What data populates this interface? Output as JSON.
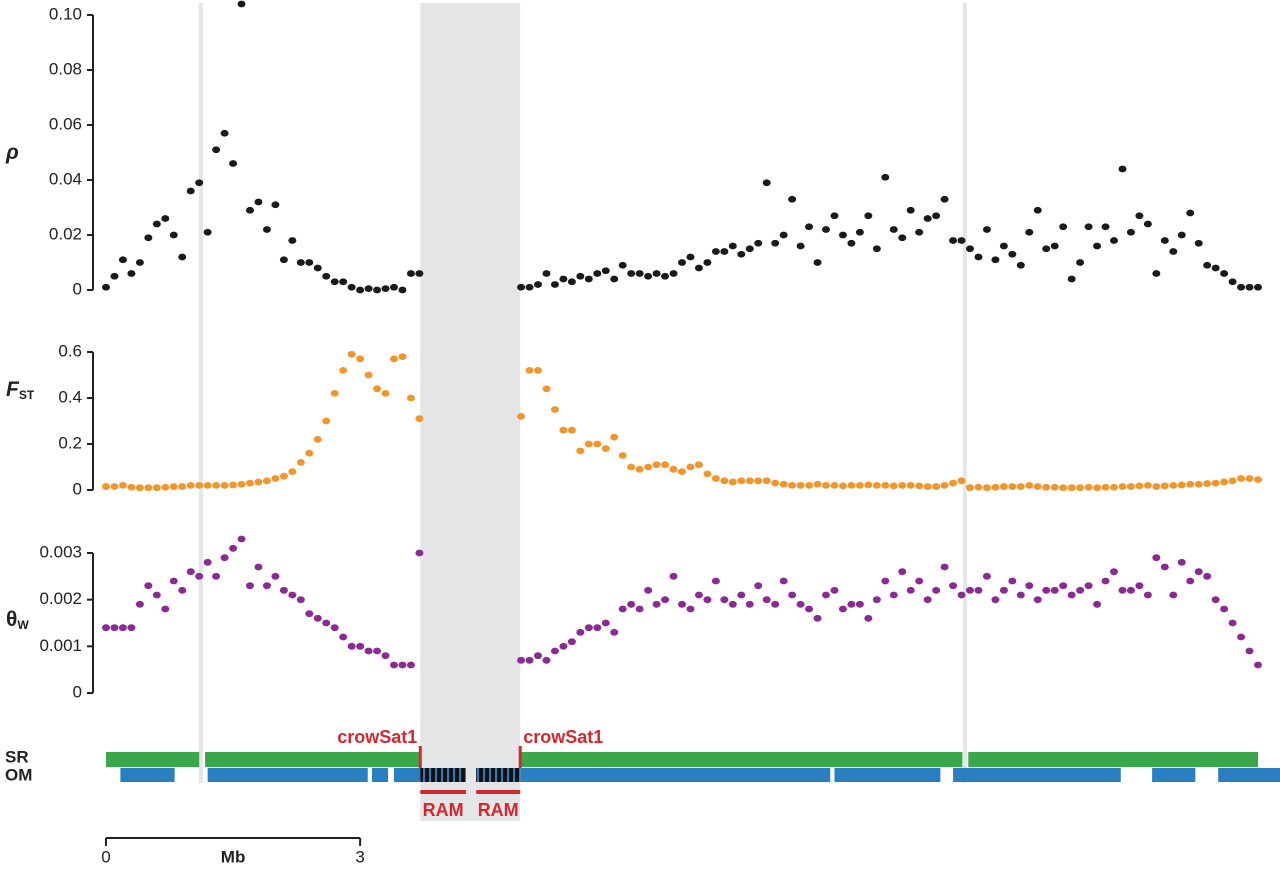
{
  "chart_data": [
    {
      "type": "scatter",
      "ylabel": "ρ",
      "color": "#1a1a1a",
      "xlim": [
        0,
        13.6
      ],
      "ylim": [
        0,
        0.1
      ],
      "yticks": [
        0,
        0.02,
        0.04,
        0.06,
        0.08,
        {
          "value": 0.1,
          "label": "0.10"
        }
      ],
      "x": [
        0,
        0.1,
        0.2,
        0.3,
        0.4,
        0.5,
        0.6,
        0.7,
        0.8,
        0.9,
        1.0,
        1.1,
        1.2,
        1.3,
        1.4,
        1.5,
        1.6,
        1.7,
        1.8,
        1.9,
        2.0,
        2.1,
        2.2,
        2.3,
        2.4,
        2.5,
        2.6,
        2.7,
        2.8,
        2.9,
        3.0,
        3.1,
        3.2,
        3.3,
        3.4,
        3.5,
        3.6,
        3.7,
        4.9,
        5.0,
        5.1,
        5.2,
        5.3,
        5.4,
        5.5,
        5.6,
        5.7,
        5.8,
        5.9,
        6.0,
        6.1,
        6.2,
        6.3,
        6.4,
        6.5,
        6.6,
        6.7,
        6.8,
        6.9,
        7.0,
        7.1,
        7.2,
        7.3,
        7.4,
        7.5,
        7.6,
        7.7,
        7.8,
        7.9,
        8.0,
        8.1,
        8.2,
        8.3,
        8.4,
        8.5,
        8.6,
        8.7,
        8.8,
        8.9,
        9.0,
        9.1,
        9.2,
        9.3,
        9.4,
        9.5,
        9.6,
        9.7,
        9.8,
        9.9,
        10.0,
        10.1,
        10.2,
        10.3,
        10.4,
        10.5,
        10.6,
        10.7,
        10.8,
        10.9,
        11.0,
        11.1,
        11.2,
        11.3,
        11.4,
        11.5,
        11.6,
        11.7,
        11.8,
        11.9,
        12.0,
        12.1,
        12.2,
        12.3,
        12.4,
        12.5,
        12.6,
        12.7,
        12.8,
        12.9,
        13.0,
        13.1,
        13.2,
        13.3,
        13.4,
        13.5,
        13.6
      ],
      "values": [
        0.001,
        0.005,
        0.011,
        0.006,
        0.01,
        0.019,
        0.024,
        0.026,
        0.02,
        0.012,
        0.036,
        0.039,
        0.021,
        0.051,
        0.057,
        0.046,
        0.104,
        0.029,
        0.032,
        0.022,
        0.031,
        0.011,
        0.018,
        0.01,
        0.01,
        0.008,
        0.005,
        0.003,
        0.003,
        0.001,
        0.0,
        0.0005,
        0.0,
        0.0005,
        0.001,
        0.0,
        0.006,
        0.006,
        0.001,
        0.001,
        0.002,
        0.006,
        0.002,
        0.004,
        0.003,
        0.005,
        0.004,
        0.006,
        0.007,
        0.004,
        0.009,
        0.006,
        0.006,
        0.005,
        0.006,
        0.005,
        0.006,
        0.01,
        0.012,
        0.008,
        0.01,
        0.014,
        0.014,
        0.016,
        0.013,
        0.015,
        0.017,
        0.039,
        0.017,
        0.02,
        0.033,
        0.016,
        0.023,
        0.01,
        0.022,
        0.027,
        0.02,
        0.017,
        0.021,
        0.027,
        0.015,
        0.041,
        0.022,
        0.019,
        0.029,
        0.021,
        0.026,
        0.027,
        0.033,
        0.018,
        0.018,
        0.015,
        0.012,
        0.022,
        0.011,
        0.016,
        0.013,
        0.009,
        0.021,
        0.029,
        0.015,
        0.016,
        0.023,
        0.004,
        0.01,
        0.023,
        0.016,
        0.023,
        0.018,
        0.044,
        0.021,
        0.027,
        0.024,
        0.006,
        0.018,
        0.014,
        0.02,
        0.028,
        0.017,
        0.009,
        0.008,
        0.006,
        0.003,
        0.001,
        0.001,
        0.001
      ]
    },
    {
      "type": "scatter",
      "ylabel": "F",
      "ylabel_sub": "ST",
      "color": "#f0962a",
      "xlim": [
        0,
        13.6
      ],
      "ylim": [
        0,
        0.6
      ],
      "yticks": [
        0,
        0.2,
        0.4,
        0.6
      ],
      "x": [
        0,
        0.1,
        0.2,
        0.3,
        0.4,
        0.5,
        0.6,
        0.7,
        0.8,
        0.9,
        1.0,
        1.1,
        1.2,
        1.3,
        1.4,
        1.5,
        1.6,
        1.7,
        1.8,
        1.9,
        2.0,
        2.1,
        2.2,
        2.3,
        2.4,
        2.5,
        2.6,
        2.7,
        2.8,
        2.9,
        3.0,
        3.1,
        3.2,
        3.3,
        3.4,
        3.5,
        3.6,
        3.7,
        4.9,
        5.0,
        5.1,
        5.2,
        5.3,
        5.4,
        5.5,
        5.6,
        5.7,
        5.8,
        5.9,
        6.0,
        6.1,
        6.2,
        6.3,
        6.4,
        6.5,
        6.6,
        6.7,
        6.8,
        6.9,
        7.0,
        7.1,
        7.2,
        7.3,
        7.4,
        7.5,
        7.6,
        7.7,
        7.8,
        7.9,
        8.0,
        8.1,
        8.2,
        8.3,
        8.4,
        8.5,
        8.6,
        8.7,
        8.8,
        8.9,
        9.0,
        9.1,
        9.2,
        9.3,
        9.4,
        9.5,
        9.6,
        9.7,
        9.8,
        9.9,
        10.0,
        10.1,
        10.2,
        10.3,
        10.4,
        10.5,
        10.6,
        10.7,
        10.8,
        10.9,
        11.0,
        11.1,
        11.2,
        11.3,
        11.4,
        11.5,
        11.6,
        11.7,
        11.8,
        11.9,
        12.0,
        12.1,
        12.2,
        12.3,
        12.4,
        12.5,
        12.6,
        12.7,
        12.8,
        12.9,
        13.0,
        13.1,
        13.2,
        13.3,
        13.4,
        13.5,
        13.6
      ],
      "values": [
        0.015,
        0.015,
        0.02,
        0.012,
        0.01,
        0.01,
        0.01,
        0.012,
        0.015,
        0.015,
        0.02,
        0.02,
        0.02,
        0.02,
        0.02,
        0.022,
        0.025,
        0.03,
        0.035,
        0.04,
        0.05,
        0.06,
        0.08,
        0.12,
        0.16,
        0.22,
        0.3,
        0.42,
        0.52,
        0.59,
        0.57,
        0.5,
        0.44,
        0.42,
        0.57,
        0.58,
        0.4,
        0.31,
        0.32,
        0.52,
        0.52,
        0.44,
        0.35,
        0.26,
        0.26,
        0.17,
        0.2,
        0.2,
        0.18,
        0.23,
        0.15,
        0.1,
        0.09,
        0.1,
        0.11,
        0.11,
        0.09,
        0.08,
        0.1,
        0.11,
        0.07,
        0.05,
        0.04,
        0.035,
        0.04,
        0.04,
        0.04,
        0.04,
        0.03,
        0.025,
        0.02,
        0.02,
        0.02,
        0.025,
        0.02,
        0.02,
        0.018,
        0.02,
        0.02,
        0.022,
        0.02,
        0.02,
        0.018,
        0.02,
        0.02,
        0.018,
        0.015,
        0.015,
        0.02,
        0.03,
        0.04,
        0.01,
        0.012,
        0.01,
        0.012,
        0.015,
        0.015,
        0.015,
        0.02,
        0.015,
        0.012,
        0.012,
        0.01,
        0.01,
        0.01,
        0.012,
        0.01,
        0.012,
        0.012,
        0.015,
        0.015,
        0.018,
        0.02,
        0.015,
        0.018,
        0.02,
        0.022,
        0.025,
        0.025,
        0.028,
        0.03,
        0.035,
        0.04,
        0.05,
        0.05,
        0.045
      ]
    },
    {
      "type": "scatter",
      "ylabel": "θ",
      "ylabel_sub": "W",
      "color": "#8b2a94",
      "xlim": [
        0,
        13.6
      ],
      "ylim": [
        0,
        0.003
      ],
      "yticks": [
        0,
        0.001,
        0.002,
        0.003
      ],
      "x": [
        0,
        0.1,
        0.2,
        0.3,
        0.4,
        0.5,
        0.6,
        0.7,
        0.8,
        0.9,
        1.0,
        1.1,
        1.2,
        1.3,
        1.4,
        1.5,
        1.6,
        1.7,
        1.8,
        1.9,
        2.0,
        2.1,
        2.2,
        2.3,
        2.4,
        2.5,
        2.6,
        2.7,
        2.8,
        2.9,
        3.0,
        3.1,
        3.2,
        3.3,
        3.4,
        3.5,
        3.6,
        3.7,
        4.9,
        5.0,
        5.1,
        5.2,
        5.3,
        5.4,
        5.5,
        5.6,
        5.7,
        5.8,
        5.9,
        6.0,
        6.1,
        6.2,
        6.3,
        6.4,
        6.5,
        6.6,
        6.7,
        6.8,
        6.9,
        7.0,
        7.1,
        7.2,
        7.3,
        7.4,
        7.5,
        7.6,
        7.7,
        7.8,
        7.9,
        8.0,
        8.1,
        8.2,
        8.3,
        8.4,
        8.5,
        8.6,
        8.7,
        8.8,
        8.9,
        9.0,
        9.1,
        9.2,
        9.3,
        9.4,
        9.5,
        9.6,
        9.7,
        9.8,
        9.9,
        10.0,
        10.1,
        10.2,
        10.3,
        10.4,
        10.5,
        10.6,
        10.7,
        10.8,
        10.9,
        11.0,
        11.1,
        11.2,
        11.3,
        11.4,
        11.5,
        11.6,
        11.7,
        11.8,
        11.9,
        12.0,
        12.1,
        12.2,
        12.3,
        12.4,
        12.5,
        12.6,
        12.7,
        12.8,
        12.9,
        13.0,
        13.1,
        13.2,
        13.3,
        13.4,
        13.5,
        13.6
      ],
      "values": [
        0.0014,
        0.0014,
        0.0014,
        0.0014,
        0.0019,
        0.0023,
        0.0021,
        0.0018,
        0.0024,
        0.0022,
        0.0026,
        0.0025,
        0.0028,
        0.0025,
        0.0029,
        0.0031,
        0.0033,
        0.0023,
        0.0027,
        0.0023,
        0.0025,
        0.0022,
        0.0021,
        0.002,
        0.0017,
        0.0016,
        0.0015,
        0.0014,
        0.0012,
        0.001,
        0.001,
        0.0009,
        0.0009,
        0.0008,
        0.0006,
        0.0006,
        0.0006,
        0.003,
        0.0007,
        0.0007,
        0.0008,
        0.0007,
        0.0009,
        0.001,
        0.0011,
        0.0013,
        0.0014,
        0.0014,
        0.0015,
        0.0013,
        0.0018,
        0.0019,
        0.0018,
        0.0022,
        0.0019,
        0.002,
        0.0025,
        0.0019,
        0.0018,
        0.0021,
        0.002,
        0.0024,
        0.002,
        0.0019,
        0.0021,
        0.0019,
        0.0023,
        0.002,
        0.0019,
        0.0024,
        0.0021,
        0.0019,
        0.0018,
        0.0016,
        0.0021,
        0.0022,
        0.0018,
        0.0019,
        0.0019,
        0.0016,
        0.002,
        0.0024,
        0.0021,
        0.0026,
        0.0022,
        0.0024,
        0.002,
        0.0022,
        0.0027,
        0.0023,
        0.0021,
        0.0022,
        0.0022,
        0.0025,
        0.002,
        0.0022,
        0.0024,
        0.0021,
        0.0023,
        0.002,
        0.0022,
        0.0022,
        0.0023,
        0.0021,
        0.0022,
        0.0023,
        0.0019,
        0.0024,
        0.0026,
        0.0022,
        0.0022,
        0.0023,
        0.0021,
        0.0029,
        0.0027,
        0.0021,
        0.0028,
        0.0024,
        0.0026,
        0.0025,
        0.002,
        0.0018,
        0.0015,
        0.0012,
        0.0009,
        0.0006
      ]
    }
  ],
  "regions": {
    "gap": [
      3.71,
      4.89
    ],
    "markers": [
      1.12,
      10.14
    ]
  },
  "tracks": [
    {
      "label": "SR",
      "color": "#3aa84a",
      "segments": [
        [
          0,
          1.1
        ],
        [
          1.17,
          10.11
        ],
        [
          10.18,
          13.6
        ]
      ]
    },
    {
      "label": "OM",
      "color": "#2a7fc1",
      "segments": [
        [
          0.17,
          0.81
        ],
        [
          1.2,
          3.09
        ],
        [
          3.14,
          3.33
        ],
        [
          3.4,
          3.71
        ],
        [
          4.89,
          8.55
        ],
        [
          8.6,
          9.85
        ],
        [
          10.0,
          11.98
        ],
        [
          12.35,
          12.86
        ],
        [
          13.13,
          13.86
        ]
      ]
    }
  ],
  "repeats": [
    {
      "start": 3.71,
      "end": 4.25,
      "label": "RAM"
    },
    {
      "start": 4.37,
      "end": 4.89,
      "label": "RAM"
    }
  ],
  "boundaries": [
    {
      "x": 3.71,
      "label": "crowSat1"
    },
    {
      "x": 4.89,
      "label": "crowSat1"
    }
  ],
  "scale_bar": {
    "ticks": [
      0,
      3
    ],
    "label": "Mb"
  }
}
